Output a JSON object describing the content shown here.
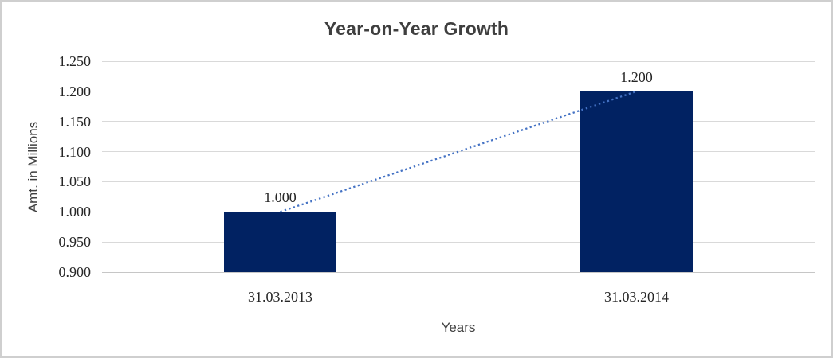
{
  "chart_data": {
    "type": "bar",
    "title": "Year-on-Year Growth",
    "xlabel": "Years",
    "ylabel": "Amt. in Millions",
    "categories": [
      "31.03.2013",
      "31.03.2014"
    ],
    "series": [
      {
        "name": "Amt. in Millions",
        "values": [
          1.0,
          1.2
        ]
      }
    ],
    "data_labels": [
      "1.000",
      "1.200"
    ],
    "y_ticks": [
      "1.250",
      "1.200",
      "1.150",
      "1.100",
      "1.050",
      "1.000",
      "0.950",
      "0.900"
    ],
    "ylim": [
      0.9,
      1.25
    ],
    "y_step": 0.05,
    "grid": "horizontal-gridlines",
    "legend_position": "none",
    "bar_color": "#012262",
    "trendline": {
      "style": "dotted",
      "color": "#4472c4",
      "values": [
        1.0,
        1.2
      ]
    },
    "colors": {
      "title": "#3f3f3f",
      "tick_labels": "#262626",
      "axis_titles": "#404040",
      "gridline": "#d9d9d9",
      "axis_line": "#c6c6c6",
      "canvas_border": "#cfcfcf",
      "background": "#ffffff"
    }
  }
}
